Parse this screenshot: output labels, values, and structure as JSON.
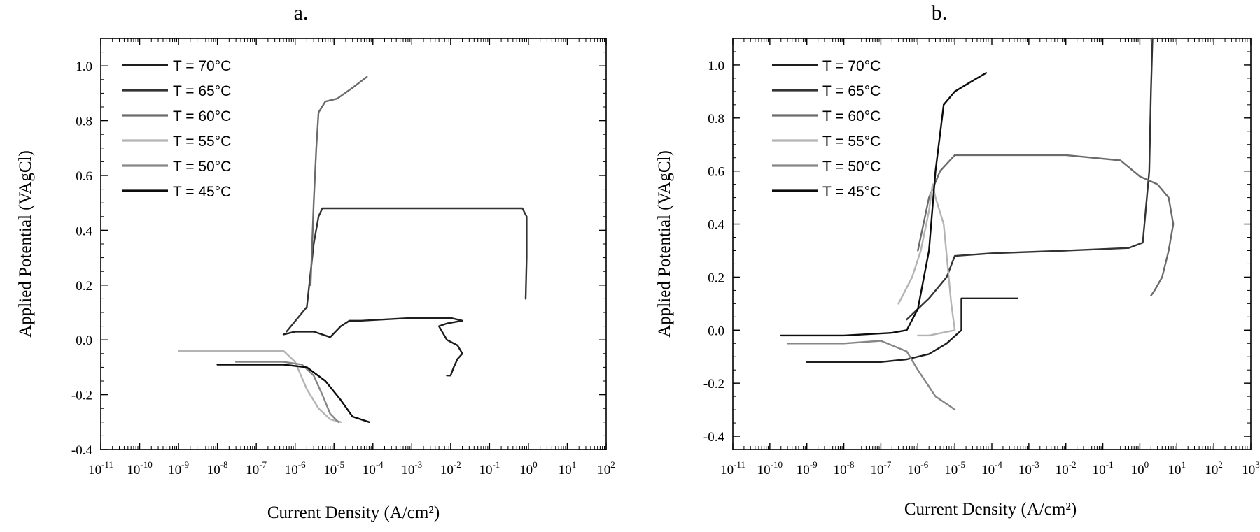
{
  "colors": {
    "series": [
      "#1e1e1e",
      "#333333",
      "#6b6b6b",
      "#b4b4b4",
      "#868686",
      "#0c0c0c"
    ]
  },
  "chart_data": [
    {
      "type": "line",
      "title": "a.",
      "xlabel": "Current Density (A/cm²)",
      "ylabel": "Applied Potential (VAgCl)",
      "xscale": "log",
      "xlim": [
        1e-11,
        100
      ],
      "ylim": [
        -0.4,
        1.1
      ],
      "xticks": [
        -11,
        -10,
        -9,
        -8,
        -7,
        -6,
        -5,
        -4,
        -3,
        -2,
        -1,
        0,
        1,
        2
      ],
      "yticks": [
        "-0.4",
        "-0.2",
        "0.0",
        "0.2",
        "0.4",
        "0.6",
        "0.8",
        "1.0"
      ],
      "legend_position": "top-left",
      "series": [
        {
          "name": "T = 70°C",
          "points": [
            [
              5e-07,
              0.02
            ],
            [
              1e-06,
              0.03
            ],
            [
              3e-06,
              0.03
            ],
            [
              8e-06,
              0.01
            ],
            [
              1.5e-05,
              0.05
            ],
            [
              2.5e-05,
              0.07
            ],
            [
              5e-05,
              0.07
            ],
            [
              0.001,
              0.08
            ],
            [
              0.01,
              0.08
            ],
            [
              0.02,
              0.07
            ],
            [
              0.008,
              0.06
            ],
            [
              0.005,
              0.05
            ],
            [
              0.008,
              0.0
            ],
            [
              0.015,
              -0.02
            ],
            [
              0.02,
              -0.05
            ],
            [
              0.015,
              -0.07
            ],
            [
              0.012,
              -0.1
            ],
            [
              0.01,
              -0.13
            ],
            [
              0.008,
              -0.13
            ]
          ]
        },
        {
          "name": "T = 65°C",
          "points": [
            [
              6e-07,
              0.03
            ],
            [
              2e-06,
              0.12
            ],
            [
              3e-06,
              0.35
            ],
            [
              4e-06,
              0.45
            ],
            [
              5e-06,
              0.48
            ],
            [
              0.0001,
              0.48
            ],
            [
              0.1,
              0.48
            ],
            [
              0.7,
              0.48
            ],
            [
              0.9,
              0.45
            ],
            [
              0.9,
              0.3
            ],
            [
              0.85,
              0.15
            ]
          ]
        },
        {
          "name": "T = 60°C",
          "points": [
            [
              2.5e-06,
              0.2
            ],
            [
              3e-06,
              0.5
            ],
            [
              3.5e-06,
              0.7
            ],
            [
              4e-06,
              0.83
            ],
            [
              6e-06,
              0.87
            ],
            [
              1.2e-05,
              0.88
            ],
            [
              3e-05,
              0.92
            ],
            [
              7e-05,
              0.96
            ]
          ]
        },
        {
          "name": "T = 55°C",
          "points": [
            [
              1e-09,
              -0.04
            ],
            [
              1e-07,
              -0.04
            ],
            [
              5e-07,
              -0.04
            ],
            [
              1e-06,
              -0.08
            ],
            [
              2e-06,
              -0.18
            ],
            [
              4e-06,
              -0.25
            ],
            [
              8e-06,
              -0.29
            ],
            [
              1.5e-05,
              -0.3
            ]
          ]
        },
        {
          "name": "T = 50°C",
          "points": [
            [
              3e-08,
              -0.08
            ],
            [
              5e-07,
              -0.08
            ],
            [
              1.5e-06,
              -0.09
            ],
            [
              3e-06,
              -0.13
            ],
            [
              5e-06,
              -0.2
            ],
            [
              8e-06,
              -0.27
            ],
            [
              1.3e-05,
              -0.3
            ]
          ]
        },
        {
          "name": "T = 45°C",
          "points": [
            [
              1e-08,
              -0.09
            ],
            [
              5e-07,
              -0.09
            ],
            [
              2e-06,
              -0.1
            ],
            [
              6e-06,
              -0.15
            ],
            [
              1.5e-05,
              -0.22
            ],
            [
              3e-05,
              -0.28
            ],
            [
              8e-05,
              -0.3
            ]
          ]
        }
      ]
    },
    {
      "type": "line",
      "title": "b.",
      "xlabel": "Current Density (A/cm²)",
      "ylabel": "Applied Potential (VAgCl)",
      "xscale": "log",
      "xlim": [
        1e-11,
        1000
      ],
      "ylim": [
        -0.45,
        1.1
      ],
      "xticks": [
        -11,
        -10,
        -9,
        -8,
        -7,
        -6,
        -5,
        -4,
        -3,
        -2,
        -1,
        0,
        1,
        2,
        3
      ],
      "yticks": [
        "-0.4",
        "-0.2",
        "0.0",
        "0.2",
        "0.4",
        "0.6",
        "0.8",
        "1.0"
      ],
      "legend_position": "top-left",
      "series": [
        {
          "name": "T = 70°C",
          "points": [
            [
              1e-09,
              -0.12
            ],
            [
              1e-07,
              -0.12
            ],
            [
              5e-07,
              -0.11
            ],
            [
              2e-06,
              -0.09
            ],
            [
              6e-06,
              -0.05
            ],
            [
              1.5e-05,
              0.0
            ],
            [
              1.5e-05,
              0.12
            ],
            [
              0.0001,
              0.12
            ],
            [
              0.0005,
              0.12
            ]
          ]
        },
        {
          "name": "T = 65°C",
          "points": [
            [
              5e-07,
              0.04
            ],
            [
              2e-06,
              0.12
            ],
            [
              6e-06,
              0.2
            ],
            [
              1e-05,
              0.28
            ],
            [
              0.0001,
              0.29
            ],
            [
              0.01,
              0.3
            ],
            [
              0.5,
              0.31
            ],
            [
              1.2,
              0.33
            ],
            [
              1.8,
              0.6
            ],
            [
              2,
              0.9
            ],
            [
              2.2,
              1.1
            ]
          ]
        },
        {
          "name": "T = 60°C",
          "points": [
            [
              1e-06,
              0.3
            ],
            [
              2e-06,
              0.5
            ],
            [
              4e-06,
              0.6
            ],
            [
              1e-05,
              0.66
            ],
            [
              0.0001,
              0.66
            ],
            [
              0.01,
              0.66
            ],
            [
              0.3,
              0.64
            ],
            [
              1,
              0.58
            ],
            [
              3,
              0.55
            ],
            [
              6,
              0.5
            ],
            [
              8,
              0.4
            ],
            [
              6,
              0.3
            ],
            [
              4,
              0.2
            ],
            [
              2.5,
              0.15
            ],
            [
              2,
              0.13
            ]
          ]
        },
        {
          "name": "T = 55°C",
          "points": [
            [
              3e-07,
              0.1
            ],
            [
              7e-07,
              0.2
            ],
            [
              1.2e-06,
              0.3
            ],
            [
              2e-06,
              0.45
            ],
            [
              2.5e-06,
              0.55
            ],
            [
              3e-06,
              0.5
            ],
            [
              5e-06,
              0.4
            ],
            [
              8e-06,
              0.1
            ],
            [
              1e-05,
              0.0
            ],
            [
              2e-06,
              -0.02
            ],
            [
              1e-06,
              -0.02
            ]
          ]
        },
        {
          "name": "T = 50°C",
          "points": [
            [
              3e-10,
              -0.05
            ],
            [
              1e-08,
              -0.05
            ],
            [
              1e-07,
              -0.04
            ],
            [
              5e-07,
              -0.08
            ],
            [
              1e-06,
              -0.15
            ],
            [
              3e-06,
              -0.25
            ],
            [
              8e-06,
              -0.29
            ],
            [
              1e-05,
              -0.3
            ]
          ]
        },
        {
          "name": "T = 45°C",
          "points": [
            [
              2e-10,
              -0.02
            ],
            [
              1e-08,
              -0.02
            ],
            [
              2e-07,
              -0.01
            ],
            [
              5e-07,
              0.0
            ],
            [
              1e-06,
              0.08
            ],
            [
              2e-06,
              0.3
            ],
            [
              3e-06,
              0.6
            ],
            [
              5e-06,
              0.85
            ],
            [
              1e-05,
              0.9
            ],
            [
              3e-05,
              0.94
            ],
            [
              7e-05,
              0.97
            ]
          ]
        }
      ]
    }
  ]
}
